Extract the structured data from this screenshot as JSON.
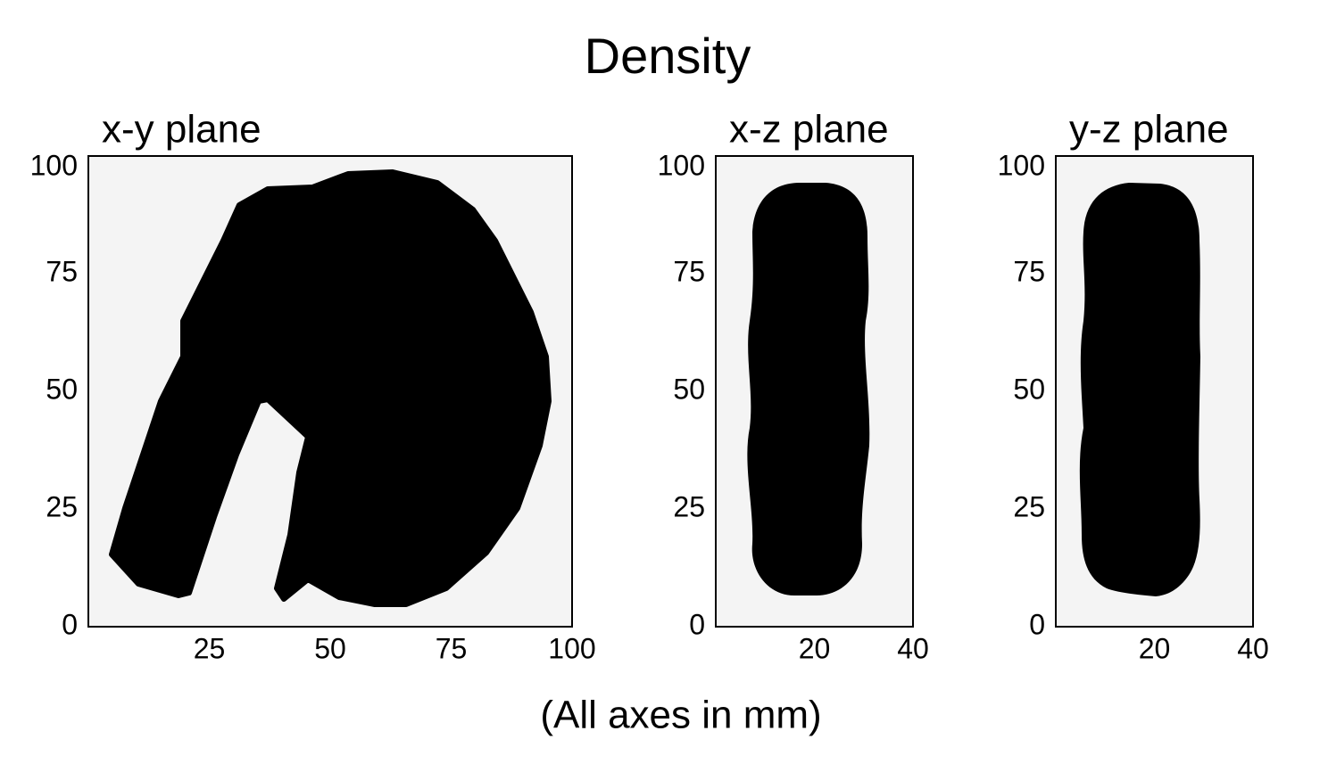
{
  "title": "Density",
  "note": "(All axes in mm)",
  "chart_data": [
    {
      "type": "density-slice",
      "title": "x-y plane",
      "xlim": [
        0,
        100
      ],
      "ylim": [
        0,
        100
      ],
      "xticks": [
        25,
        50,
        75,
        100
      ],
      "yticks": [
        0,
        25,
        50,
        75,
        100
      ]
    },
    {
      "type": "density-slice",
      "title": "x-z plane",
      "xlim": [
        0,
        40
      ],
      "ylim": [
        0,
        100
      ],
      "xticks": [
        20,
        40
      ],
      "yticks": [
        0,
        25,
        50,
        75,
        100
      ]
    },
    {
      "type": "density-slice",
      "title": "y-z plane",
      "xlim": [
        0,
        40
      ],
      "ylim": [
        0,
        100
      ],
      "xticks": [
        20,
        40
      ],
      "yticks": [
        0,
        25,
        50,
        75,
        100
      ]
    }
  ]
}
